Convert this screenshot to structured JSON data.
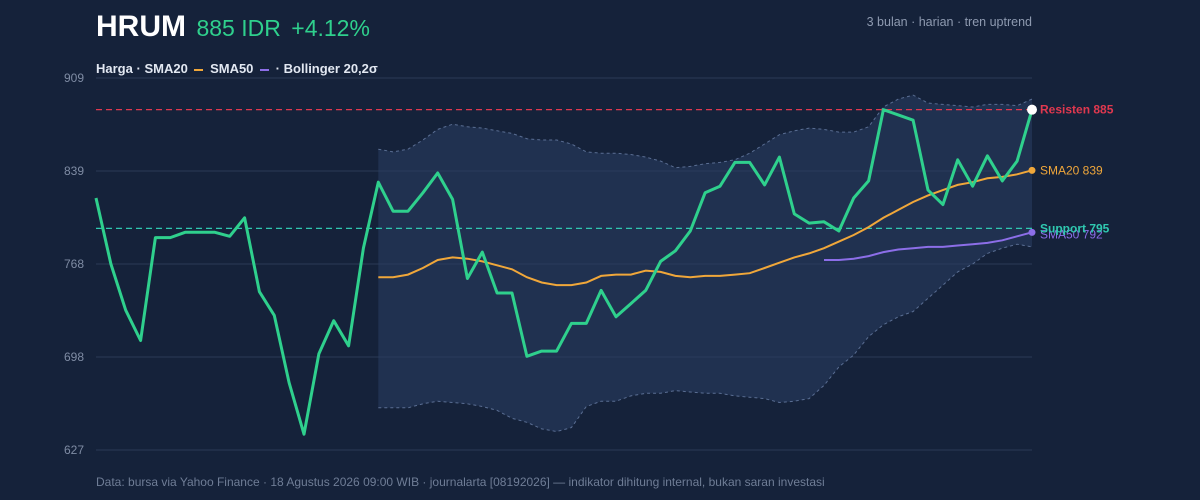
{
  "header": {
    "ticker": "HRUM",
    "price": "885 IDR",
    "change": "+4.12%",
    "period": "3 bulan · harian · tren uptrend"
  },
  "legend": {
    "price_label": "Harga",
    "sep1": "·",
    "sma20_label": "SMA20",
    "sma50_label": "SMA50",
    "sep2": "·",
    "bollinger_label": "Bollinger 20,2σ"
  },
  "footer": "Data: bursa via Yahoo Finance · 18 Agustus 2026 09:00 WIB · journalarta [08192026] — indikator dihitung internal, bukan saran investasi",
  "colors": {
    "background": "#15223a",
    "price": "#2fd08d",
    "sma20": "#f0a73a",
    "sma50": "#8c6ee8",
    "bollinger": "#5a6e93",
    "resistance": "#e0384f",
    "support": "#2fc9b0",
    "grid": "#2a3a55"
  },
  "chart_data": {
    "type": "line",
    "ylim": [
      627,
      909
    ],
    "yticks": [
      "909",
      "839",
      "768",
      "698",
      "627"
    ],
    "grid": true,
    "price": [
      818,
      768,
      733,
      710,
      788,
      788,
      792,
      792,
      792,
      789,
      803,
      747,
      729,
      678,
      639,
      700,
      725,
      706,
      780,
      830,
      808,
      808,
      822,
      837,
      817,
      757,
      777,
      746,
      746,
      698,
      702,
      702,
      723,
      723,
      748,
      728,
      738,
      748,
      770,
      778,
      793,
      822,
      827,
      845,
      845,
      828,
      849,
      806,
      799,
      800,
      793,
      818,
      831,
      885,
      881,
      877,
      824,
      813,
      847,
      827,
      850,
      831,
      846,
      885
    ],
    "sma20": [
      null,
      null,
      null,
      null,
      null,
      null,
      null,
      null,
      null,
      null,
      null,
      null,
      null,
      null,
      null,
      null,
      null,
      null,
      null,
      758,
      758,
      760,
      765,
      771,
      773,
      772,
      770,
      767,
      764,
      758,
      754,
      752,
      752,
      754,
      759,
      760,
      760,
      763,
      762,
      759,
      758,
      759,
      759,
      760,
      761,
      765,
      769,
      773,
      776,
      780,
      785,
      790,
      796,
      803,
      809,
      815,
      820,
      824,
      828,
      830,
      833,
      834,
      836,
      839
    ],
    "sma50": [
      null,
      null,
      null,
      null,
      null,
      null,
      null,
      null,
      null,
      null,
      null,
      null,
      null,
      null,
      null,
      null,
      null,
      null,
      null,
      null,
      null,
      null,
      null,
      null,
      null,
      null,
      null,
      null,
      null,
      null,
      null,
      null,
      null,
      null,
      null,
      null,
      null,
      null,
      null,
      null,
      null,
      null,
      null,
      null,
      null,
      null,
      null,
      null,
      null,
      771,
      771,
      772,
      774,
      777,
      779,
      780,
      781,
      781,
      782,
      783,
      784,
      786,
      789,
      792
    ],
    "bb_upper": [
      null,
      null,
      null,
      null,
      null,
      null,
      null,
      null,
      null,
      null,
      null,
      null,
      null,
      null,
      null,
      null,
      null,
      null,
      null,
      855,
      853,
      855,
      862,
      870,
      874,
      872,
      871,
      869,
      867,
      863,
      862,
      862,
      859,
      853,
      852,
      852,
      851,
      849,
      846,
      841,
      842,
      844,
      845,
      847,
      852,
      859,
      866,
      869,
      871,
      870,
      868,
      868,
      872,
      887,
      893,
      896,
      890,
      889,
      888,
      887,
      889,
      889,
      888,
      893
    ],
    "bb_lower": [
      null,
      null,
      null,
      null,
      null,
      null,
      null,
      null,
      null,
      null,
      null,
      null,
      null,
      null,
      null,
      null,
      null,
      null,
      null,
      659,
      659,
      659,
      662,
      664,
      663,
      662,
      660,
      657,
      651,
      648,
      643,
      641,
      644,
      660,
      664,
      664,
      668,
      670,
      670,
      672,
      671,
      670,
      670,
      668,
      667,
      666,
      663,
      664,
      666,
      676,
      690,
      699,
      713,
      722,
      728,
      732,
      742,
      752,
      762,
      768,
      776,
      780,
      783,
      781
    ],
    "resistance": {
      "value": 885,
      "label": "Resisten 885"
    },
    "support": {
      "value": 795,
      "label": "Support 795"
    },
    "end_labels": {
      "sma20": "SMA20 839",
      "sma50": "SMA50 792"
    }
  }
}
